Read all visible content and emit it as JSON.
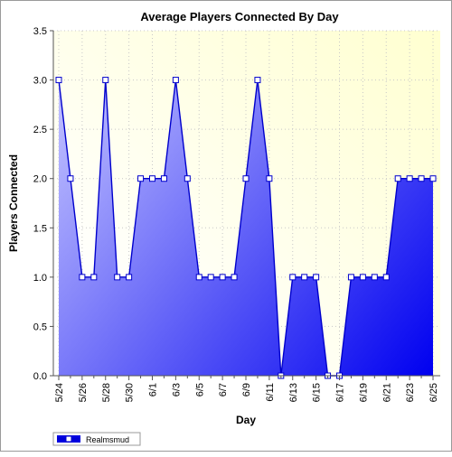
{
  "chart_data": {
    "type": "area",
    "title": "Average Players Connected By Day",
    "xlabel": "Day",
    "ylabel": "Players Connected",
    "ylim": [
      0,
      3.5
    ],
    "yticks": [
      "0.0",
      "0.5",
      "1.0",
      "1.5",
      "2.0",
      "2.5",
      "3.0",
      "3.5"
    ],
    "x": [
      "5/24",
      "5/25",
      "5/26",
      "5/27",
      "5/28",
      "5/29",
      "5/30",
      "5/31",
      "6/1",
      "6/2",
      "6/3",
      "6/4",
      "6/5",
      "6/6",
      "6/7",
      "6/8",
      "6/9",
      "6/10",
      "6/11",
      "6/12",
      "6/13",
      "6/14",
      "6/15",
      "6/16",
      "6/17",
      "6/18",
      "6/19",
      "6/20",
      "6/21",
      "6/22",
      "6/23",
      "6/24",
      "6/25"
    ],
    "xtick_labels": [
      "5/24",
      "5/26",
      "5/28",
      "5/30",
      "6/1",
      "6/3",
      "6/5",
      "6/7",
      "6/9",
      "6/11",
      "6/13",
      "6/15",
      "6/17",
      "6/19",
      "6/21",
      "6/23",
      "6/25"
    ],
    "series": [
      {
        "name": "Realmsmud",
        "values": [
          3,
          2,
          1,
          1,
          3,
          1,
          1,
          2,
          2,
          2,
          3,
          2,
          1,
          1,
          1,
          1,
          2,
          3,
          2,
          0,
          1,
          1,
          1,
          0,
          0,
          1,
          1,
          1,
          1,
          2,
          2,
          2,
          2
        ]
      }
    ],
    "grid": true,
    "legend_position": "bottom-left",
    "colors": {
      "line": "#0000cc",
      "marker_fill": "#ffffff",
      "area_light": "#c4c4ff",
      "area_dark": "#0000f0",
      "plot_bg_top": "#ffffd0",
      "plot_bg_bottom": "#ffffff"
    }
  }
}
